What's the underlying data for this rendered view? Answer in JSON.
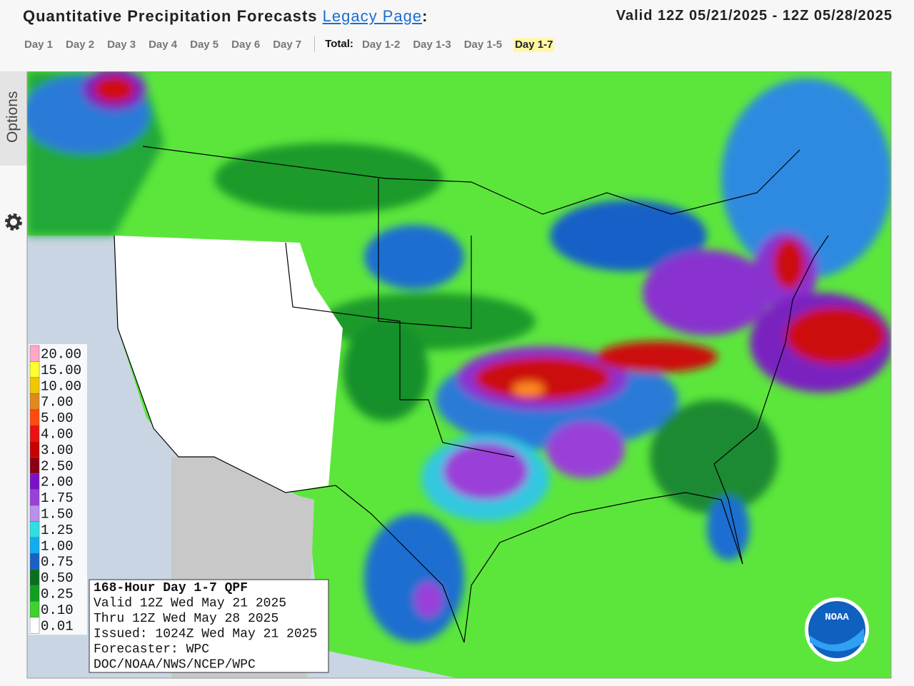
{
  "header": {
    "title": "Quantitative Precipitation Forecasts",
    "link": "Legacy Page",
    "colon": ":",
    "valid": "Valid 12Z 05/21/2025 - 12Z 05/28/2025"
  },
  "tabs": {
    "days": [
      "Day 1",
      "Day 2",
      "Day 3",
      "Day 4",
      "Day 5",
      "Day 6",
      "Day 7"
    ],
    "total_label": "Total:",
    "totals": [
      "Day 1-2",
      "Day 1-3",
      "Day 1-5",
      "Day 1-7"
    ],
    "selected_total": 3
  },
  "options": "Options",
  "legend": {
    "labels": [
      "20.00",
      "15.00",
      "10.00",
      "7.00",
      "5.00",
      "4.00",
      "3.00",
      "2.50",
      "2.00",
      "1.75",
      "1.50",
      "1.25",
      "1.00",
      "0.75",
      "0.50",
      "0.25",
      "0.10",
      "0.01"
    ],
    "colors": [
      "#ffa8c8",
      "#ffff30",
      "#f0c800",
      "#e08a1e",
      "#ff4a10",
      "#ee1010",
      "#c80000",
      "#8b0010",
      "#7a10c8",
      "#9a40d8",
      "#b890ee",
      "#30e0e0",
      "#10aef0",
      "#1860c8",
      "#0a6e20",
      "#10a020",
      "#40d030",
      "#ffffff"
    ]
  },
  "info_box": {
    "title": "168-Hour Day 1-7 QPF",
    "lines": [
      "Valid 12Z Wed May 21 2025",
      "Thru 12Z Wed May 28 2025",
      "Issued: 1024Z Wed May 21 2025",
      "Forecaster: WPC",
      "DOC/NOAA/NWS/NCEP/WPC"
    ]
  },
  "logo_text": "NOAA"
}
